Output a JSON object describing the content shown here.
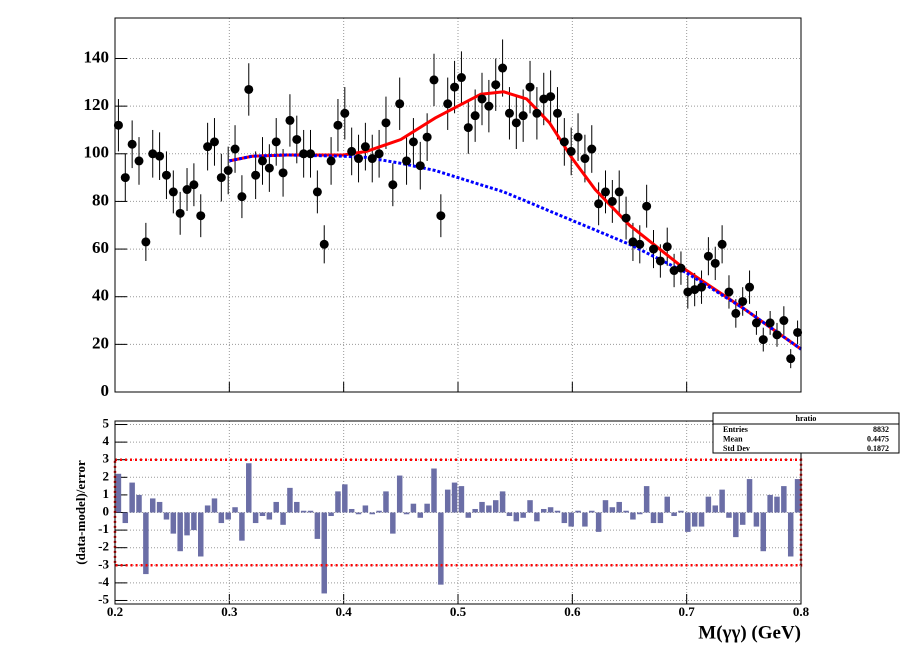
{
  "chart_data": [
    {
      "type": "scatter",
      "x": [
        0.203,
        0.209,
        0.215,
        0.221,
        0.227,
        0.233,
        0.239,
        0.245,
        0.251,
        0.257,
        0.263,
        0.269,
        0.275,
        0.281,
        0.287,
        0.293,
        0.299,
        0.305,
        0.311,
        0.317,
        0.323,
        0.329,
        0.335,
        0.341,
        0.347,
        0.353,
        0.359,
        0.365,
        0.371,
        0.377,
        0.383,
        0.389,
        0.395,
        0.401,
        0.407,
        0.413,
        0.419,
        0.425,
        0.431,
        0.437,
        0.443,
        0.449,
        0.455,
        0.461,
        0.467,
        0.473,
        0.479,
        0.485,
        0.491,
        0.497,
        0.503,
        0.509,
        0.515,
        0.521,
        0.527,
        0.533,
        0.539,
        0.545,
        0.551,
        0.557,
        0.563,
        0.569,
        0.575,
        0.581,
        0.587,
        0.593,
        0.599,
        0.605,
        0.611,
        0.617,
        0.623,
        0.629,
        0.635,
        0.641,
        0.647,
        0.653,
        0.659,
        0.665,
        0.671,
        0.677,
        0.683,
        0.689,
        0.695,
        0.701,
        0.707,
        0.713,
        0.719,
        0.725,
        0.731,
        0.737,
        0.743,
        0.749,
        0.755,
        0.761,
        0.767,
        0.773,
        0.779,
        0.785,
        0.791,
        0.797
      ],
      "values": [
        112,
        90,
        104,
        97,
        63,
        100,
        99,
        91,
        84,
        75,
        85,
        87,
        74,
        103,
        105,
        90,
        93,
        102,
        82,
        127,
        91,
        97,
        94,
        105,
        92,
        114,
        106,
        100,
        100,
        84,
        62,
        97,
        112,
        117,
        101,
        98,
        103,
        98,
        100,
        113,
        87,
        121,
        97,
        105,
        95,
        107,
        131,
        74,
        121,
        128,
        132,
        111,
        116,
        123,
        120,
        129,
        136,
        117,
        113,
        116,
        128,
        117,
        123,
        124,
        117,
        105,
        101,
        107,
        98,
        102,
        79,
        84,
        80,
        84,
        73,
        63,
        62,
        78,
        60,
        55,
        61,
        51,
        52,
        42,
        43,
        44,
        57,
        54,
        62,
        42,
        33,
        38,
        44,
        29,
        22,
        29,
        24,
        30,
        14,
        25
      ],
      "errors": [
        11,
        10,
        10,
        10,
        8,
        10,
        10,
        10,
        9,
        9,
        9,
        9,
        9,
        10,
        10,
        10,
        10,
        10,
        9,
        11,
        10,
        10,
        10,
        10,
        10,
        11,
        10,
        10,
        10,
        9,
        8,
        10,
        11,
        11,
        10,
        10,
        10,
        10,
        10,
        11,
        9,
        11,
        10,
        10,
        10,
        10,
        11,
        9,
        11,
        11,
        11,
        11,
        11,
        11,
        11,
        11,
        12,
        11,
        11,
        11,
        11,
        11,
        11,
        11,
        11,
        10,
        10,
        10,
        10,
        10,
        9,
        9,
        9,
        9,
        9,
        8,
        8,
        9,
        8,
        7,
        8,
        7,
        7,
        7,
        7,
        7,
        8,
        7,
        8,
        7,
        6,
        6,
        7,
        5,
        5,
        5,
        5,
        6,
        4,
        5
      ],
      "color": "#000000",
      "curves": [
        {
          "x": [
            0.3,
            0.32,
            0.35,
            0.4,
            0.42,
            0.45,
            0.48,
            0.5,
            0.52,
            0.54,
            0.56,
            0.58,
            0.6,
            0.62,
            0.65,
            0.7,
            0.75,
            0.8
          ],
          "values": [
            97,
            99,
            99.5,
            99.5,
            101,
            106,
            115,
            120,
            125,
            126,
            123,
            113,
            98,
            85,
            70,
            51,
            35,
            18
          ],
          "color": "#ff0000",
          "dashed": false
        },
        {
          "x": [
            0.3,
            0.32,
            0.35,
            0.4,
            0.42,
            0.45,
            0.48,
            0.5,
            0.52,
            0.54,
            0.56,
            0.58,
            0.6,
            0.62,
            0.65,
            0.7,
            0.75,
            0.8
          ],
          "values": [
            97,
            99,
            99.5,
            99,
            98.5,
            96,
            93,
            90,
            87,
            84,
            80,
            76,
            72,
            68,
            62,
            50,
            35,
            18
          ],
          "color": "#0000ff",
          "dashed": true
        }
      ],
      "xlim": [
        0.2,
        0.8
      ],
      "xticks": [
        0.2,
        0.3,
        0.4,
        0.5,
        0.6,
        0.7,
        0.8
      ],
      "ylim": [
        0,
        157
      ],
      "yticks": [
        0,
        20,
        40,
        60,
        80,
        100,
        120,
        140
      ],
      "grid": true
    },
    {
      "type": "histogram",
      "bins": [
        0.2,
        0.206,
        0.212,
        0.218,
        0.224,
        0.23,
        0.236,
        0.242,
        0.248,
        0.254,
        0.26,
        0.266,
        0.272,
        0.278,
        0.284,
        0.29,
        0.296,
        0.302,
        0.308,
        0.314,
        0.32,
        0.326,
        0.332,
        0.338,
        0.344,
        0.35,
        0.356,
        0.362,
        0.368,
        0.374,
        0.38,
        0.386,
        0.392,
        0.398,
        0.404,
        0.41,
        0.416,
        0.422,
        0.428,
        0.434,
        0.44,
        0.446,
        0.452,
        0.458,
        0.464,
        0.47,
        0.476,
        0.482,
        0.488,
        0.494,
        0.5,
        0.506,
        0.512,
        0.518,
        0.524,
        0.53,
        0.536,
        0.542,
        0.548,
        0.554,
        0.56,
        0.566,
        0.572,
        0.578,
        0.584,
        0.59,
        0.596,
        0.602,
        0.608,
        0.614,
        0.62,
        0.626,
        0.632,
        0.638,
        0.644,
        0.65,
        0.656,
        0.662,
        0.668,
        0.674,
        0.68,
        0.686,
        0.692,
        0.698,
        0.704,
        0.71,
        0.716,
        0.722,
        0.728,
        0.734,
        0.74,
        0.746,
        0.752,
        0.758,
        0.764,
        0.77,
        0.776,
        0.782,
        0.788,
        0.794,
        0.8
      ],
      "values": [
        2.2,
        -0.6,
        1.7,
        1.0,
        -3.5,
        0.8,
        0.6,
        -0.4,
        -1.2,
        -2.2,
        -1.3,
        -1.0,
        -2.5,
        0.4,
        0.8,
        -0.6,
        -0.4,
        0.3,
        -1.6,
        2.8,
        -0.6,
        -0.2,
        -0.4,
        0.6,
        -0.7,
        1.4,
        0.6,
        0.1,
        0.1,
        -1.5,
        -4.6,
        -0.2,
        1.2,
        1.6,
        0.2,
        -0.1,
        0.4,
        -0.1,
        0.1,
        1.2,
        -1.2,
        2.1,
        -0.1,
        0.5,
        -0.3,
        0.5,
        2.5,
        -4.1,
        1.3,
        1.7,
        1.5,
        -0.3,
        0.2,
        0.6,
        0.4,
        0.7,
        1.2,
        -0.2,
        -0.5,
        -0.3,
        0.7,
        -0.5,
        0.2,
        0.3,
        0.1,
        -0.6,
        -0.8,
        0.1,
        -0.8,
        0.1,
        -1.1,
        0.7,
        0.3,
        0.6,
        0.1,
        -0.4,
        -0.1,
        1.5,
        -0.6,
        -0.6,
        0.9,
        -0.2,
        0.1,
        -1.1,
        -0.8,
        -0.8,
        0.9,
        0.4,
        1.3,
        -0.3,
        -1.4,
        -0.7,
        1.9,
        -0.8,
        -2.2,
        1.0,
        0.9,
        1.5,
        -2.5,
        1.9
      ],
      "color": "#6b6ea6",
      "xlabel": "M(γγ) (GeV)",
      "ylabel": "(data-model)/error",
      "band": [
        -3,
        3
      ],
      "band_color": "#ff0000",
      "xlim": [
        0.2,
        0.8
      ],
      "xticks": [
        0.2,
        0.3,
        0.4,
        0.5,
        0.6,
        0.7,
        0.8
      ],
      "ylim": [
        -5.2,
        5.2
      ],
      "yticks": [
        -5,
        -4,
        -3,
        -2,
        -1,
        0,
        1,
        2,
        3,
        4,
        5
      ],
      "grid": true,
      "stats": {
        "title": "hratio",
        "rows": [
          {
            "label": "Entries",
            "value": 8832
          },
          {
            "label": "Mean",
            "value": 0.4475
          },
          {
            "label": "Std Dev",
            "value": 0.1872
          }
        ]
      }
    }
  ]
}
